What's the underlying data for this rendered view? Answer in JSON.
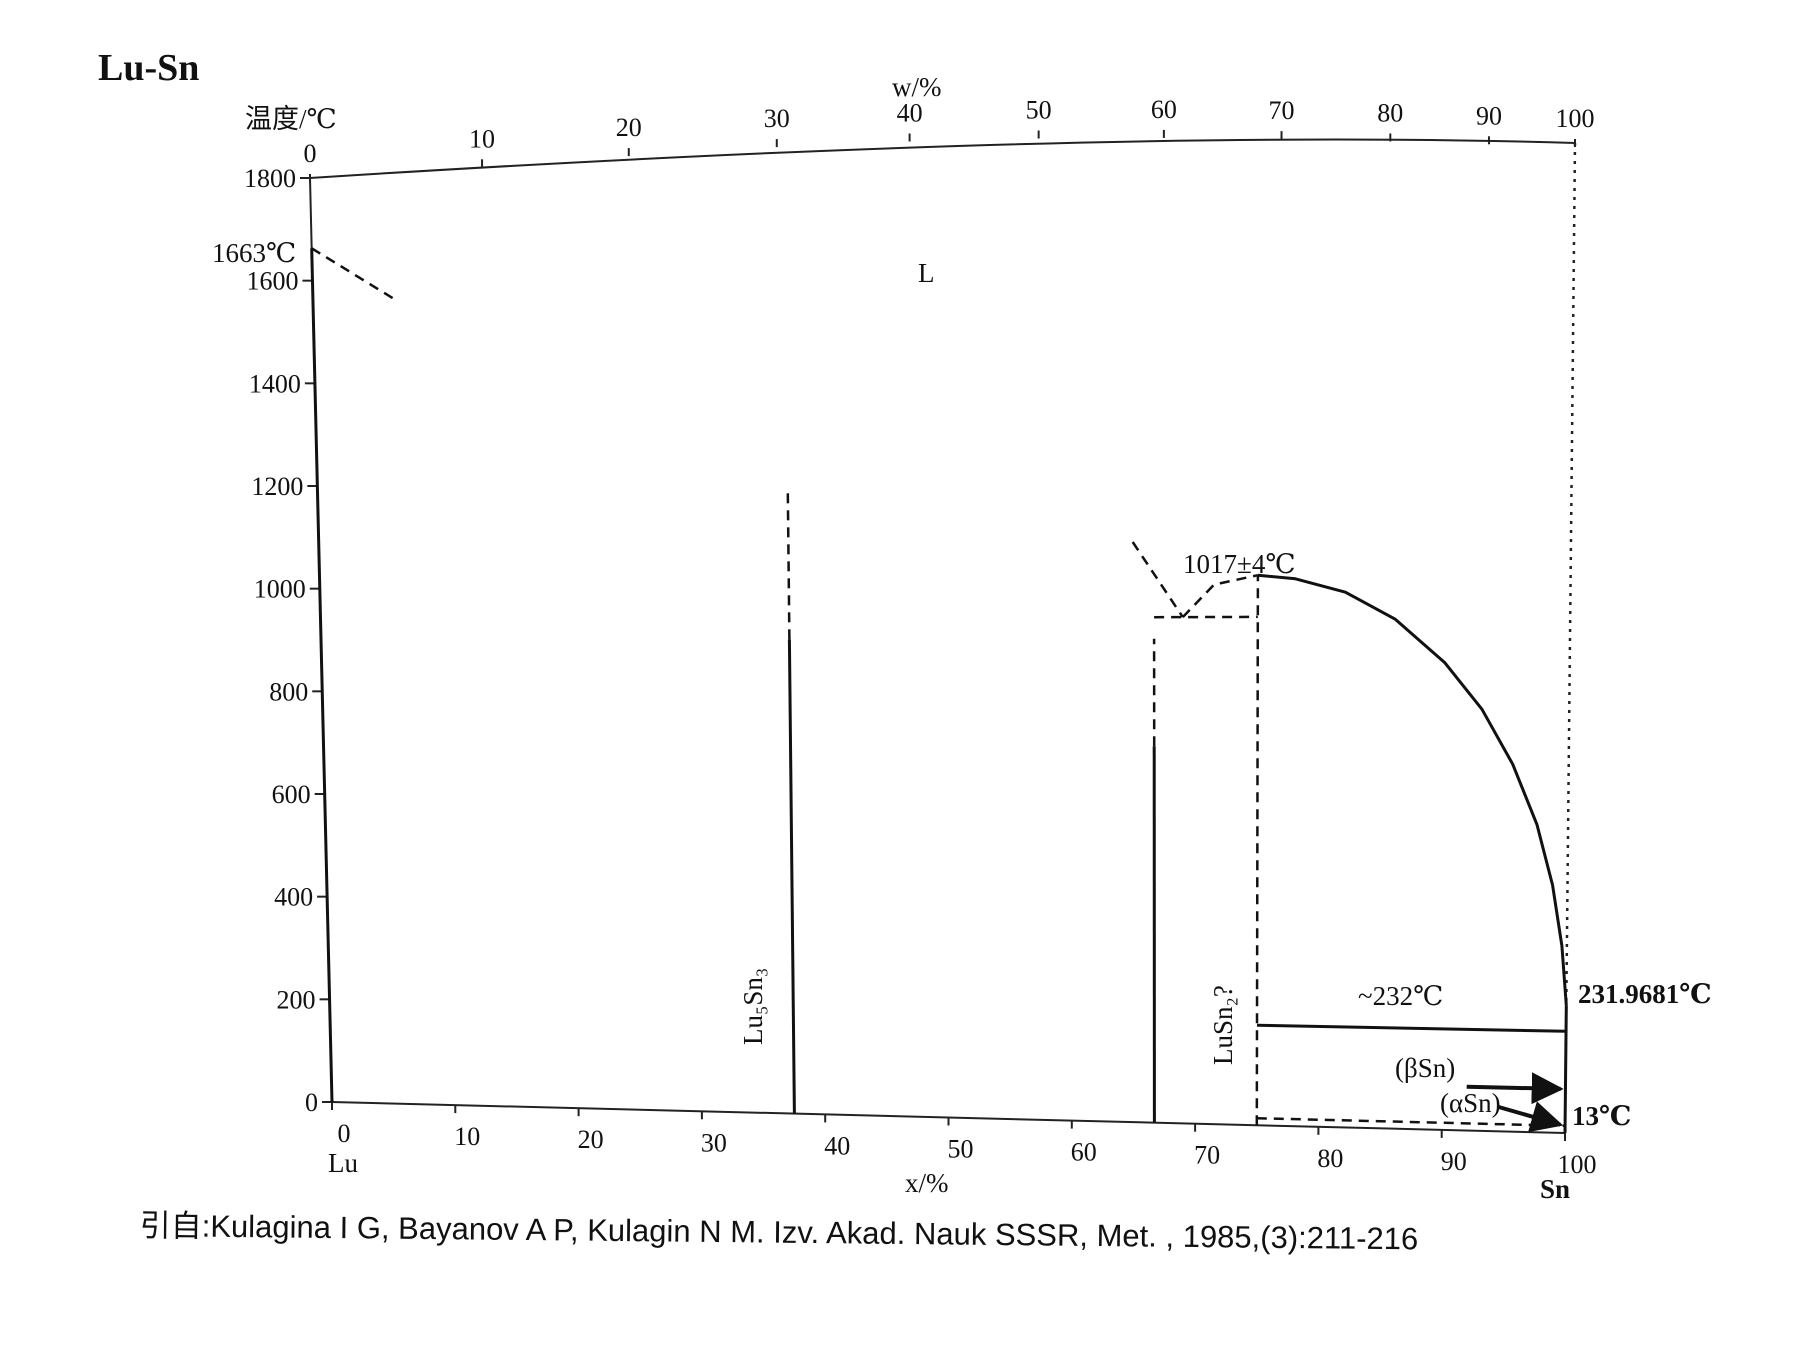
{
  "chart_data": {
    "type": "line",
    "title": "Lu-Sn",
    "ylabel": "温度/℃",
    "xlabel_bottom": "x/%",
    "xlabel_top": "w/%",
    "ylim": [
      0,
      1800
    ],
    "xlim": [
      0,
      100
    ],
    "y_ticks": [
      "0",
      "200",
      "400",
      "600",
      "800",
      "1000",
      "1200",
      "1400",
      "1600",
      "1800"
    ],
    "x_ticks_bottom": [
      "0",
      "10",
      "20",
      "30",
      "40",
      "50",
      "60",
      "70",
      "80",
      "90",
      "100"
    ],
    "x_ticks_top": [
      "0",
      "10",
      "20",
      "30",
      "40",
      "50",
      "60",
      "70",
      "80",
      "90",
      "100"
    ],
    "x_top_positions_at": [
      0,
      13.6,
      25.2,
      36.9,
      47.4,
      57.6,
      67.5,
      76.8,
      85.4,
      93.2,
      100
    ],
    "left_element": "Lu",
    "right_element": "Sn",
    "phase_labels": {
      "liquid": "L",
      "lu5sn3": "Lu₅Sn₃",
      "lusn2": "LuSn₂?",
      "beta_sn": "(βSn)",
      "alpha_sn": "(αSn)"
    },
    "annotations": {
      "lu_melting": "1663℃",
      "peritectic": "1017±4℃",
      "eutectic": "~232℃",
      "sn_melting": "231.9681℃",
      "transition": "13℃"
    },
    "series": [
      {
        "name": "",
        "style": "dashed",
        "x": [
          0,
          6.5
        ],
        "y": [
          1663,
          1560
        ]
      },
      {
        "name": "",
        "style": "solid",
        "x": [
          0,
          0
        ],
        "y": [
          0,
          1663
        ]
      },
      {
        "name": "",
        "style": "dashed",
        "x": [
          37.5,
          37.5
        ],
        "y": [
          900,
          1180
        ]
      },
      {
        "name": "",
        "style": "solid",
        "x": [
          37.5,
          37.5
        ],
        "y": [
          0,
          900
        ]
      },
      {
        "name": "",
        "style": "dashed",
        "x": [
          66.7,
          66.7
        ],
        "y": [
          700,
          900
        ]
      },
      {
        "name": "",
        "style": "solid",
        "x": [
          66.7,
          66.7
        ],
        "y": [
          0,
          700
        ]
      },
      {
        "name": "",
        "style": "dashed",
        "x": [
          66.7,
          75
        ],
        "y": [
          940,
          940
        ]
      },
      {
        "name": "",
        "style": "dashed",
        "x": [
          75,
          75
        ],
        "y": [
          0,
          1017
        ]
      },
      {
        "name": "",
        "style": "dashed",
        "x": [
          65,
          69
        ],
        "y": [
          1080,
          940
        ]
      },
      {
        "name": "",
        "style": "dashed",
        "x": [
          69,
          71.5,
          75
        ],
        "y": [
          940,
          1000,
          1017
        ]
      },
      {
        "name": "",
        "style": "solid",
        "x": [
          75,
          78,
          82,
          86,
          90,
          93,
          95.5,
          97.5,
          98.8,
          99.6,
          100
        ],
        "y": [
          1017,
          1010,
          985,
          935,
          855,
          770,
          670,
          560,
          450,
          340,
          232
        ]
      },
      {
        "name": "",
        "style": "solid",
        "x": [
          75,
          100
        ],
        "y": [
          185,
          185
        ]
      },
      {
        "name": "",
        "style": "solid",
        "x": [
          100,
          100
        ],
        "y": [
          0,
          232
        ]
      },
      {
        "name": "",
        "style": "dashed",
        "x": [
          75,
          100
        ],
        "y": [
          13,
          13
        ]
      }
    ]
  },
  "citation": "引自:Kulagina I G, Bayanov A P, Kulagin N M. Izv. Akad. Nauk SSSR, Met. , 1985,(3):211-216"
}
